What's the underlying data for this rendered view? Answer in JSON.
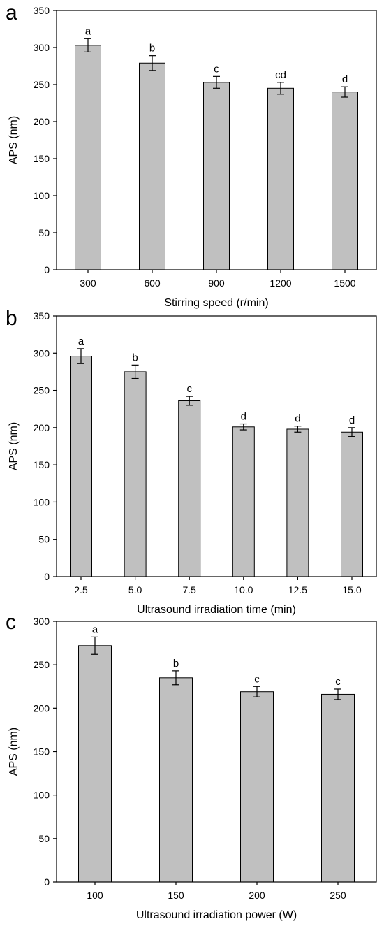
{
  "colors": {
    "bar_fill": "#c0c0c0",
    "bar_stroke": "#000000",
    "axis": "#000000",
    "background": "#ffffff"
  },
  "chart_data": [
    {
      "type": "bar",
      "panel_label": "a",
      "title": "",
      "xlabel": "Stirring speed (r/min)",
      "ylabel": "APS (nm)",
      "ylim": [
        0,
        350
      ],
      "yticks": [
        0,
        50,
        100,
        150,
        200,
        250,
        300,
        350
      ],
      "categories": [
        "300",
        "600",
        "900",
        "1200",
        "1500"
      ],
      "values": [
        303,
        279,
        253,
        245,
        240
      ],
      "errors": [
        9,
        10,
        8,
        8,
        7
      ],
      "annotations": [
        "a",
        "b",
        "c",
        "cd",
        "d"
      ],
      "grid": false,
      "legend": "none"
    },
    {
      "type": "bar",
      "panel_label": "b",
      "title": "",
      "xlabel": "Ultrasound irradiation time (min)",
      "ylabel": "APS (nm)",
      "ylim": [
        0,
        350
      ],
      "yticks": [
        0,
        50,
        100,
        150,
        200,
        250,
        300,
        350
      ],
      "categories": [
        "2.5",
        "5.0",
        "7.5",
        "10.0",
        "12.5",
        "15.0"
      ],
      "values": [
        296,
        275,
        236,
        201,
        198,
        194
      ],
      "errors": [
        10,
        9,
        6,
        4,
        4,
        6
      ],
      "annotations": [
        "a",
        "b",
        "c",
        "d",
        "d",
        "d"
      ],
      "grid": false,
      "legend": "none"
    },
    {
      "type": "bar",
      "panel_label": "c",
      "title": "",
      "xlabel": "Ultrasound irradiation power (W)",
      "ylabel": "APS (nm)",
      "ylim": [
        0,
        300
      ],
      "yticks": [
        0,
        50,
        100,
        150,
        200,
        250,
        300
      ],
      "categories": [
        "100",
        "150",
        "200",
        "250"
      ],
      "values": [
        272,
        235,
        219,
        216
      ],
      "errors": [
        10,
        8,
        6,
        6
      ],
      "annotations": [
        "a",
        "b",
        "c",
        "c"
      ],
      "grid": false,
      "legend": "none"
    }
  ]
}
